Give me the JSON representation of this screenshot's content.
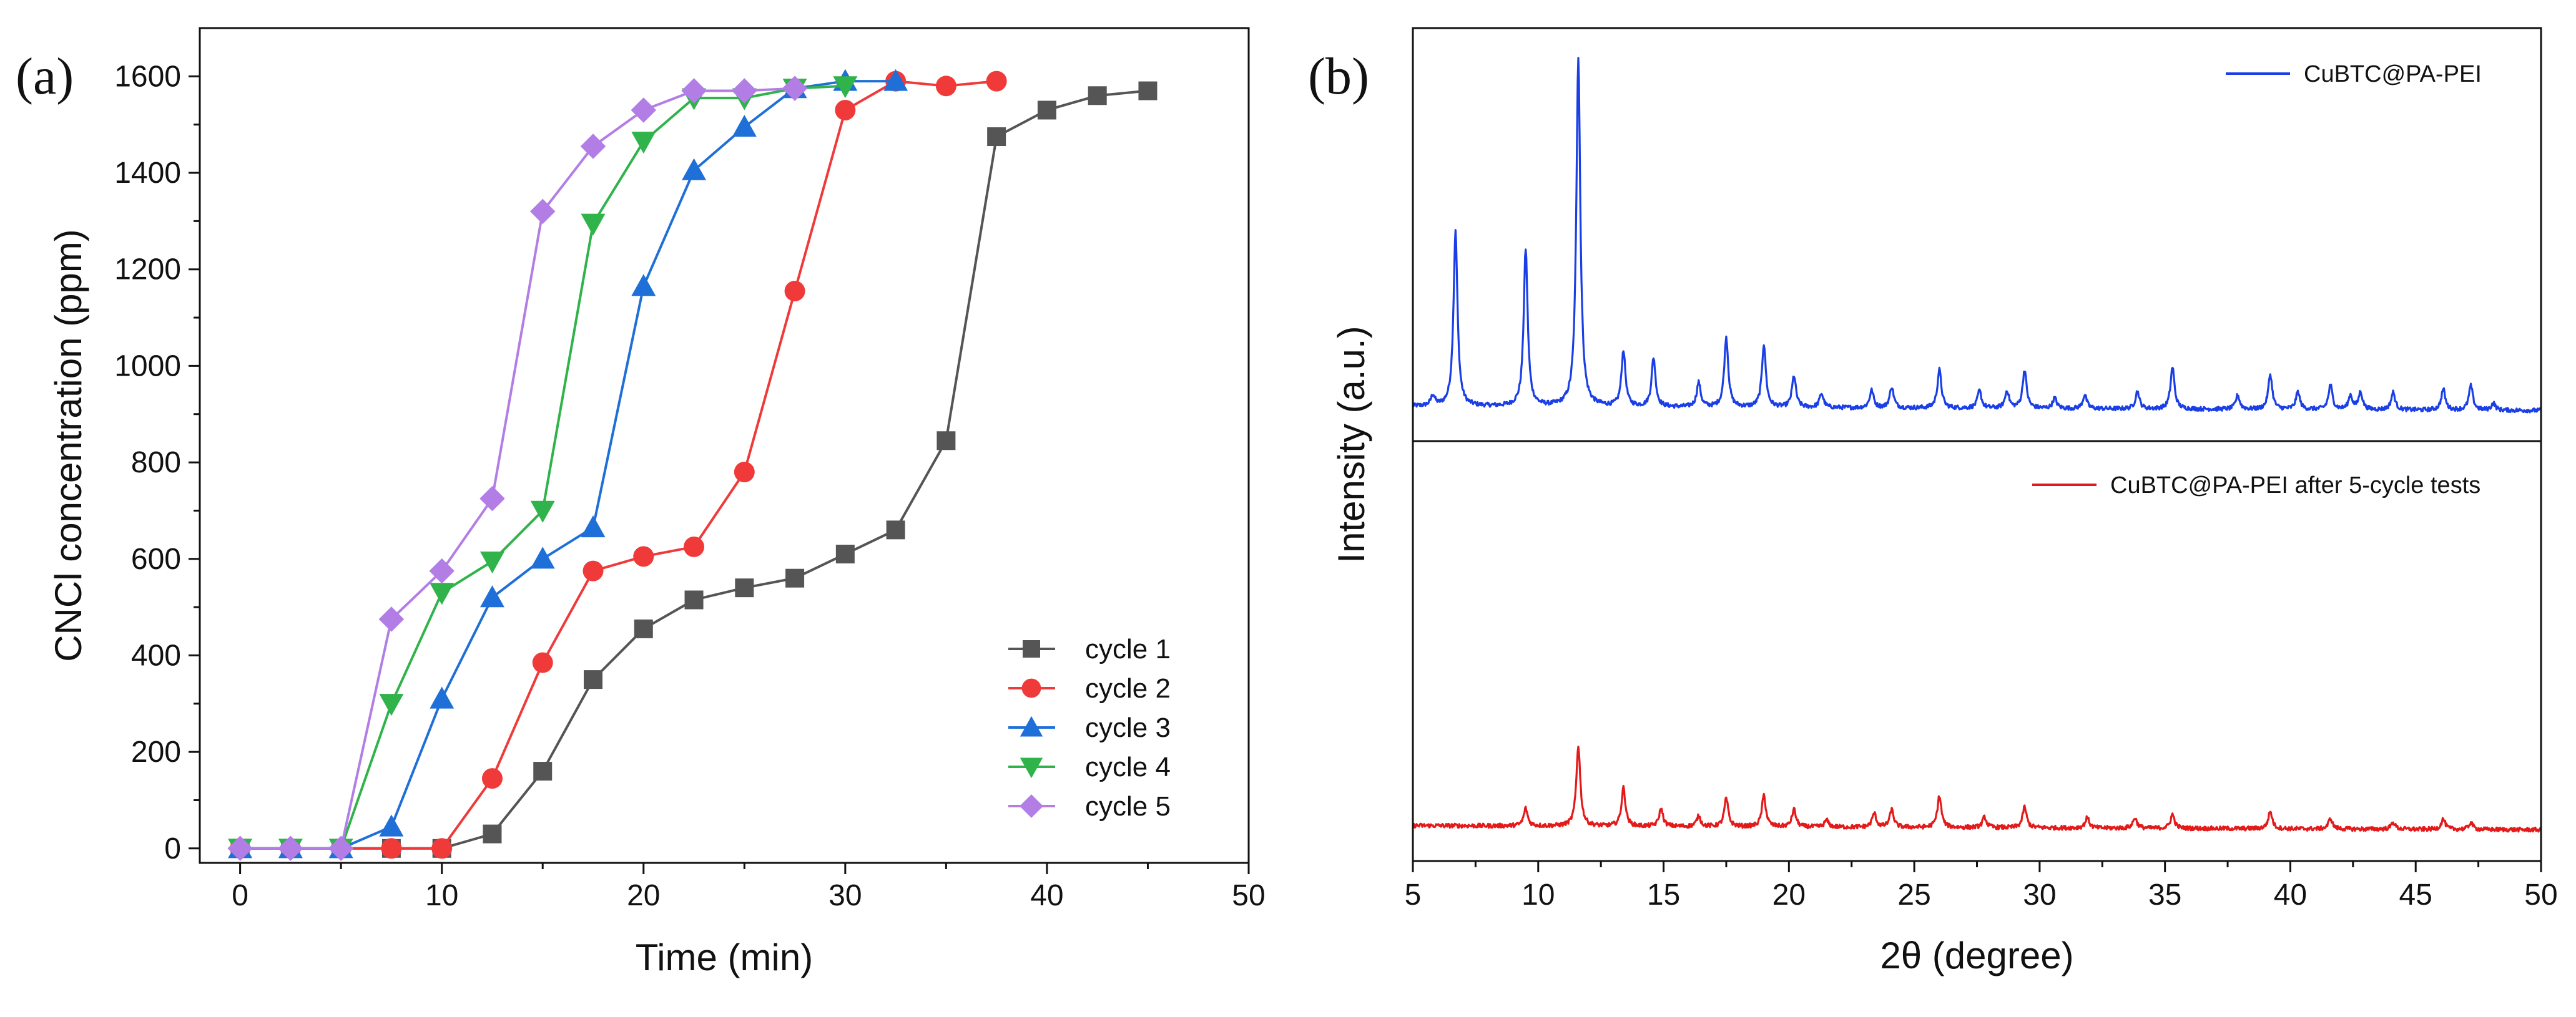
{
  "chart_data": [
    {
      "panel_label": "(a)",
      "type": "line",
      "xlabel": "Time (min)",
      "ylabel": "CNCl concentration (ppm)",
      "xlim": [
        -2,
        50
      ],
      "ylim": [
        -30,
        1700
      ],
      "xticks": [
        0,
        10,
        20,
        30,
        40,
        50
      ],
      "yticks": [
        0,
        200,
        400,
        600,
        800,
        1000,
        1200,
        1400,
        1600
      ],
      "legend_position": "bottom-right",
      "series": [
        {
          "name": "cycle 1",
          "color": "#555555",
          "marker": "square",
          "x": [
            0,
            2.5,
            5,
            7.5,
            10,
            12.5,
            15,
            17.5,
            20,
            22.5,
            25,
            27.5,
            30,
            32.5,
            35,
            37.5,
            40,
            42.5,
            45
          ],
          "y": [
            0,
            0,
            0,
            0,
            0,
            30,
            160,
            350,
            455,
            515,
            540,
            560,
            610,
            660,
            845,
            1475,
            1530,
            1560,
            1570
          ]
        },
        {
          "name": "cycle 2",
          "color": "#f03a3a",
          "marker": "circle",
          "x": [
            0,
            2.5,
            5,
            7.5,
            10,
            12.5,
            15,
            17.5,
            20,
            22.5,
            25,
            27.5,
            30,
            32.5,
            35,
            37.5
          ],
          "y": [
            0,
            0,
            0,
            0,
            0,
            145,
            385,
            575,
            605,
            625,
            780,
            1155,
            1530,
            1590,
            1580,
            1590
          ]
        },
        {
          "name": "cycle 3",
          "color": "#1f6fd8",
          "marker": "triangle-up",
          "x": [
            0,
            2.5,
            5,
            7.5,
            10,
            12.5,
            15,
            17.5,
            20,
            22.5,
            25,
            27.5,
            30,
            32.5
          ],
          "y": [
            0,
            0,
            0,
            45,
            310,
            520,
            600,
            665,
            1165,
            1405,
            1495,
            1575,
            1590,
            1590
          ]
        },
        {
          "name": "cycle 4",
          "color": "#2fb34a",
          "marker": "triangle-down",
          "x": [
            0,
            2.5,
            5,
            7.5,
            10,
            12.5,
            15,
            17.5,
            20,
            22.5,
            25,
            27.5,
            30
          ],
          "y": [
            0,
            0,
            0,
            300,
            530,
            595,
            700,
            1295,
            1465,
            1555,
            1555,
            1575,
            1580
          ]
        },
        {
          "name": "cycle 5",
          "color": "#b27ee6",
          "marker": "diamond",
          "x": [
            0,
            2.5,
            5,
            7.5,
            10,
            12.5,
            15,
            17.5,
            20,
            22.5,
            25,
            27.5
          ],
          "y": [
            0,
            0,
            0,
            475,
            575,
            725,
            1320,
            1455,
            1530,
            1570,
            1570,
            1575
          ]
        }
      ]
    },
    {
      "panel_label": "(b)",
      "type": "line",
      "xlabel": "2θ (degree)",
      "ylabel": "Intensity (a.u.)",
      "xlim": [
        5,
        50
      ],
      "xticks": [
        5,
        10,
        15,
        20,
        25,
        30,
        35,
        40,
        45,
        50
      ],
      "legend_position": "top-right",
      "stacked": true,
      "series": [
        {
          "name": "CuBTC@PA-PEI",
          "color": "#1a3fe6",
          "baseline": 0.03,
          "peaks": [
            [
              5.8,
              0.03
            ],
            [
              6.7,
              0.5
            ],
            [
              9.5,
              0.45
            ],
            [
              11.6,
              1.0
            ],
            [
              13.4,
              0.16
            ],
            [
              14.6,
              0.14
            ],
            [
              16.4,
              0.07
            ],
            [
              17.5,
              0.2
            ],
            [
              19.0,
              0.18
            ],
            [
              20.2,
              0.09
            ],
            [
              21.3,
              0.04
            ],
            [
              23.3,
              0.05
            ],
            [
              24.1,
              0.06
            ],
            [
              26.0,
              0.11
            ],
            [
              27.6,
              0.05
            ],
            [
              28.7,
              0.05
            ],
            [
              29.4,
              0.11
            ],
            [
              30.6,
              0.03
            ],
            [
              31.8,
              0.04
            ],
            [
              33.9,
              0.05
            ],
            [
              35.3,
              0.12
            ],
            [
              37.9,
              0.04
            ],
            [
              39.2,
              0.1
            ],
            [
              40.3,
              0.05
            ],
            [
              41.6,
              0.07
            ],
            [
              42.4,
              0.04
            ],
            [
              42.8,
              0.05
            ],
            [
              44.1,
              0.05
            ],
            [
              46.1,
              0.06
            ],
            [
              47.2,
              0.07
            ],
            [
              48.1,
              0.02
            ]
          ]
        },
        {
          "name": "CuBTC@PA-PEI after 5-cycle tests",
          "color": "#e41a1a",
          "baseline": 0.03,
          "peaks": [
            [
              9.5,
              0.05
            ],
            [
              11.6,
              0.23
            ],
            [
              13.4,
              0.11
            ],
            [
              14.9,
              0.05
            ],
            [
              16.4,
              0.03
            ],
            [
              17.5,
              0.08
            ],
            [
              19.0,
              0.09
            ],
            [
              20.2,
              0.05
            ],
            [
              21.5,
              0.02
            ],
            [
              23.4,
              0.04
            ],
            [
              24.1,
              0.05
            ],
            [
              26.0,
              0.09
            ],
            [
              27.8,
              0.03
            ],
            [
              29.4,
              0.06
            ],
            [
              31.9,
              0.03
            ],
            [
              33.8,
              0.03
            ],
            [
              35.3,
              0.04
            ],
            [
              39.2,
              0.05
            ],
            [
              41.6,
              0.03
            ],
            [
              44.1,
              0.02
            ],
            [
              46.1,
              0.03
            ],
            [
              47.2,
              0.02
            ]
          ]
        }
      ]
    }
  ]
}
